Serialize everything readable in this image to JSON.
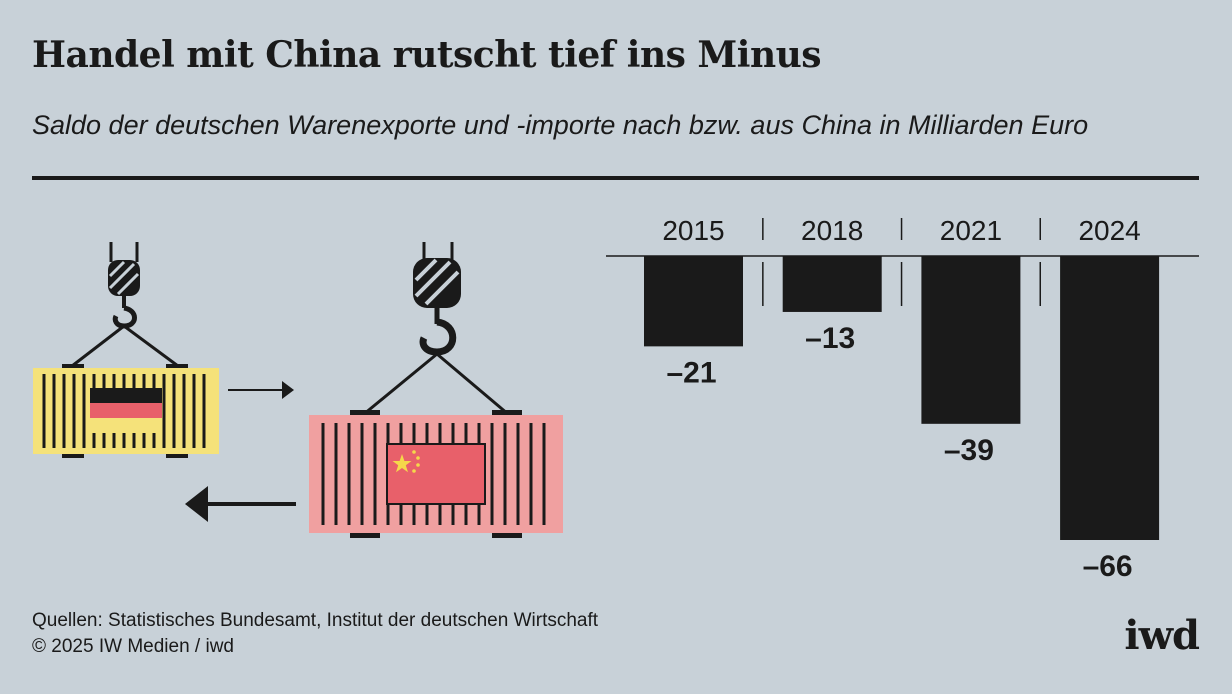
{
  "header": {
    "title": "Handel mit China rutscht tief ins Minus",
    "subtitle": "Saldo der deutschen Warenexporte und -importe nach bzw. aus China in Milliarden Euro"
  },
  "illustration": {
    "icons": [
      "crane-hook-icon",
      "container-germany-icon",
      "german-flag-icon",
      "container-china-icon",
      "chinese-flag-icon",
      "arrow-right-icon",
      "arrow-left-icon"
    ],
    "colors": {
      "yellow": "#f5e27a",
      "pink": "#f0a0a0",
      "flag_red": "#e8606a",
      "star": "#f5d84a"
    }
  },
  "chart_data": {
    "type": "bar",
    "categories": [
      "2015",
      "2018",
      "2021",
      "2024"
    ],
    "values": [
      -21,
      -13,
      -39,
      -66
    ],
    "value_labels": [
      "–21",
      "–13",
      "–39",
      "–66"
    ],
    "bar_color": "#1a1a1a",
    "ylim": [
      -66,
      0
    ]
  },
  "footer": {
    "source_line1": "Quellen: Statistisches Bundesamt, Institut der deutschen Wirtschaft",
    "source_line2": "© 2025 IW Medien / iwd",
    "logo": "iwd"
  }
}
